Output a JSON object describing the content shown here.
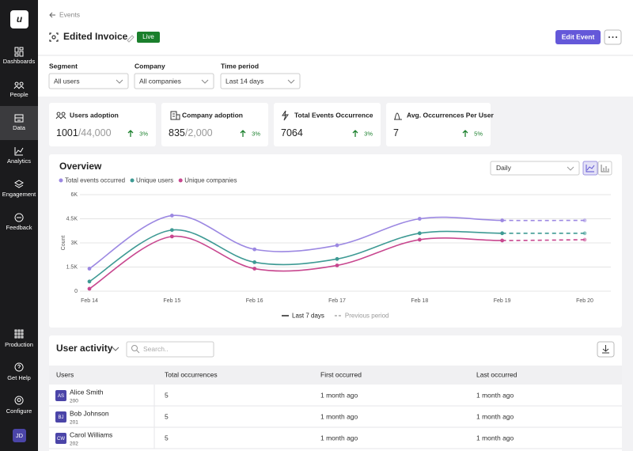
{
  "sidebar": {
    "logo": "u",
    "nav": [
      "Dashboards",
      "People",
      "Data",
      "Analytics",
      "Engagement",
      "Feedback"
    ],
    "active": "Data",
    "bottom": [
      "Production",
      "Get Help",
      "Configure"
    ],
    "avatar": "JD"
  },
  "header": {
    "back": "Events",
    "title": "Edited Invoice",
    "status": "Live",
    "primary_button": "Edit Event"
  },
  "filters": [
    {
      "label": "Segment",
      "value": "All users"
    },
    {
      "label": "Company",
      "value": "All companies"
    },
    {
      "label": "Time period",
      "value": "Last 14 days"
    }
  ],
  "stats": [
    {
      "label": "Users adoption",
      "value": "1001",
      "total": "/44,000",
      "change": "3%"
    },
    {
      "label": "Company adoption",
      "value": "835",
      "total": "/2,000",
      "change": "3%"
    },
    {
      "label": "Total Events Occurrence",
      "value": "7064",
      "total": null,
      "change": "3%"
    },
    {
      "label": "Avg. Occurrences Per User",
      "value": "7",
      "total": null,
      "change": "5%"
    }
  ],
  "overview_controls": {
    "granularity": "Daily"
  },
  "chart_data": {
    "type": "line",
    "title": "Overview",
    "y_label": "Count",
    "categories": [
      "Feb 14",
      "Feb 15",
      "Feb 16",
      "Feb 17",
      "Feb 18",
      "Feb 19",
      "Feb 20"
    ],
    "series": [
      {
        "name": "Total events occurred",
        "color": "#9c88e2",
        "values": [
          1400,
          4700,
          2600,
          2850,
          4500,
          4400,
          4400
        ]
      },
      {
        "name": "Unique users",
        "color": "#3e9a94",
        "values": [
          600,
          3800,
          1800,
          2000,
          3600,
          3600,
          3600
        ]
      },
      {
        "name": "Unique companies",
        "color": "#c8478f",
        "values": [
          150,
          3400,
          1400,
          1600,
          3200,
          3150,
          3200
        ]
      }
    ],
    "ylim": [
      0,
      6000
    ],
    "yticks": [
      {
        "value": 0,
        "label": "0"
      },
      {
        "value": 1500,
        "label": "1.5K"
      },
      {
        "value": 3000,
        "label": "3K"
      },
      {
        "value": 4500,
        "label": "4.5K"
      },
      {
        "value": 6000,
        "label": "6K"
      }
    ],
    "grid": true,
    "dashed_from": "Feb 19",
    "period_legend": [
      {
        "label": "Last 7 days",
        "style": "solid"
      },
      {
        "label": "Previous period",
        "style": "dashed"
      }
    ]
  },
  "activity": {
    "title": "User activity",
    "search_placeholder": "Search..",
    "columns": [
      "Users",
      "Total occurrences",
      "First occurred",
      "Last occurred"
    ],
    "rows": [
      {
        "initials": "AS",
        "name": "Alice Smith",
        "id": "200",
        "total": "5",
        "first": "1 month ago",
        "last": "1 month ago"
      },
      {
        "initials": "BJ",
        "name": "Bob Johnson",
        "id": "201",
        "total": "5",
        "first": "1 month ago",
        "last": "1 month ago"
      },
      {
        "initials": "CW",
        "name": "Carol Williams",
        "id": "202",
        "total": "5",
        "first": "1 month ago",
        "last": "1 month ago"
      }
    ]
  }
}
